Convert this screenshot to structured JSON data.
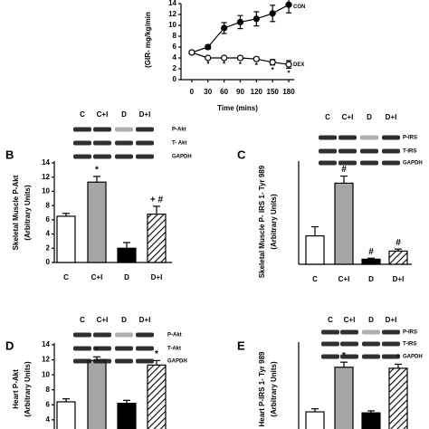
{
  "chart_data": [
    {
      "type": "line",
      "ylabel": [
        "(GIR- mg/kg/min"
      ],
      "xlabel": "Time (mins)",
      "x": [
        0,
        30,
        60,
        90,
        120,
        150,
        180
      ],
      "xlim": [
        -20,
        190
      ],
      "xticks": [
        0,
        30,
        60,
        90,
        120,
        150,
        180
      ],
      "ylim": [
        0,
        14
      ],
      "yticks": [
        0,
        2,
        4,
        6,
        8,
        10,
        12,
        14
      ],
      "series": [
        {
          "name": "CON",
          "color": "#000000",
          "filled": true,
          "values": [
            5,
            6,
            9.5,
            10.6,
            11.2,
            12.2,
            13.8
          ],
          "errors": [
            0.3,
            0.4,
            1,
            1.2,
            1.3,
            1.5,
            1.5
          ]
        },
        {
          "name": "DEX",
          "color": "#000000",
          "filled": false,
          "values": [
            5,
            4,
            4,
            4,
            3.8,
            3.2,
            2.8
          ],
          "errors": [
            0.2,
            0.2,
            0.2,
            0.3,
            0.3,
            0.5,
            0.7
          ],
          "annotations": [
            null,
            "*",
            "*",
            "*",
            "*",
            "*",
            "*"
          ]
        }
      ]
    },
    {
      "type": "bar",
      "panel_label": "B",
      "ylabel": [
        "Skeletal Muscle P-Akt",
        "(Arbitrary Units)"
      ],
      "categories": [
        "C",
        "C+I",
        "D",
        "D+I"
      ],
      "values": [
        6.5,
        11.3,
        2.0,
        6.8
      ],
      "errors": [
        0.4,
        0.8,
        0.8,
        1.1
      ],
      "colors": [
        "#ffffff",
        "#a6a6a6",
        "#000000",
        "#ffffff"
      ],
      "hatched": [
        false,
        false,
        false,
        true
      ],
      "annotations": [
        null,
        "*",
        null,
        "+ #"
      ],
      "ylim": [
        0,
        14
      ],
      "yticks": [
        0,
        2,
        4,
        6,
        8,
        10,
        12,
        14
      ],
      "blot": {
        "lanes": [
          "C",
          "C+I",
          "D",
          "D+I"
        ],
        "bands": [
          "P-Akt",
          "T- Akt",
          "GAPDH"
        ]
      }
    },
    {
      "type": "bar",
      "panel_label": "C",
      "ylabel": [
        "Skeletal Muscle P- IRS 1- Tyr 989",
        "(Arbitrary Units)"
      ],
      "categories": [
        "C",
        "C+I",
        "D",
        "D+I"
      ],
      "values": [
        1.4,
        4.0,
        0.25,
        0.65
      ],
      "errors": [
        0.45,
        0.35,
        0.05,
        0.1
      ],
      "colors": [
        "#ffffff",
        "#a6a6a6",
        "#000000",
        "#ffffff"
      ],
      "hatched": [
        false,
        false,
        false,
        true
      ],
      "annotations": [
        null,
        "#",
        "#",
        "#"
      ],
      "ylim": [
        0,
        5
      ],
      "blot": {
        "lanes": [
          "C",
          "C+I",
          "D",
          "D+I"
        ],
        "bands": [
          "P-IRS",
          "T-IRS",
          "GAPDH"
        ]
      }
    },
    {
      "type": "bar",
      "panel_label": "D",
      "ylabel": [
        "Heart P-Akt",
        "(Arbitrary Units)"
      ],
      "values": [
        6.4,
        11.9,
        6.2,
        11.3
      ],
      "errors": [
        0.4,
        0.5,
        0.4,
        0.6
      ],
      "colors": [
        "#ffffff",
        "#a6a6a6",
        "#000000",
        "#ffffff"
      ],
      "hatched": [
        false,
        false,
        false,
        true
      ],
      "annotations": [
        null,
        "*",
        null,
        "*"
      ],
      "ylim": [
        0,
        14
      ],
      "yticks": [
        4,
        6,
        8,
        10,
        12,
        14
      ],
      "blot": {
        "lanes": [
          "C",
          "C+I",
          "D",
          "D+I"
        ],
        "bands": [
          "P-Akt",
          "T-Akt",
          "GAPDH"
        ]
      }
    },
    {
      "type": "bar",
      "panel_label": "E",
      "ylabel": [
        "Heart P-IRS 1- Tyr 989",
        "(Arbitrary Units)"
      ],
      "values": [
        1.65,
        3.85,
        1.6,
        3.8
      ],
      "errors": [
        0.15,
        0.25,
        0.1,
        0.2
      ],
      "colors": [
        "#ffffff",
        "#a6a6a6",
        "#000000",
        "#ffffff"
      ],
      "hatched": [
        false,
        false,
        false,
        true
      ],
      "annotations": [
        null,
        "*",
        null,
        "*"
      ],
      "ylim": [
        0,
        5
      ],
      "blot": {
        "lanes": [
          "C",
          "C+I",
          "D",
          "D+I"
        ],
        "bands": [
          "P-IRS",
          "T-IRS",
          "GAPDH"
        ]
      }
    }
  ]
}
